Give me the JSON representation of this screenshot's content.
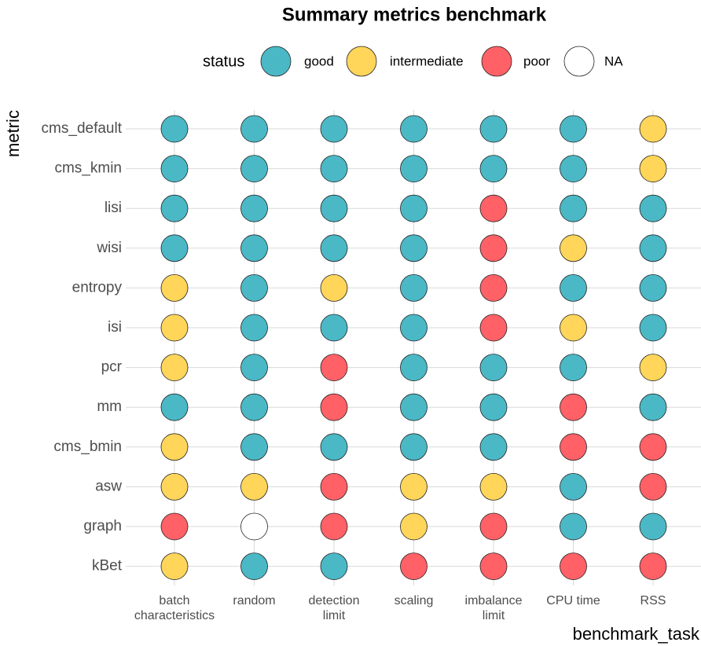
{
  "chart_data": {
    "type": "dot-matrix",
    "title": "Summary metrics benchmark",
    "x_label": "benchmark_task",
    "y_label": "metric",
    "legend_title": "status",
    "legend_position": "top",
    "grid": true,
    "statuses": [
      {
        "name": "good",
        "color": "#4bb8c6"
      },
      {
        "name": "intermediate",
        "color": "#ffd55a"
      },
      {
        "name": "poor",
        "color": "#ff6166"
      },
      {
        "name": "NA",
        "color": "#ffffff"
      }
    ],
    "categories": [
      "batch\ncharacteristics",
      "random",
      "detection\nlimit",
      "scaling",
      "imbalance\nlimit",
      "CPU time",
      "RSS"
    ],
    "rows": [
      "cms_default",
      "cms_kmin",
      "lisi",
      "wisi",
      "entropy",
      "isi",
      "pcr",
      "mm",
      "cms_bmin",
      "asw",
      "graph",
      "kBet"
    ],
    "cells": [
      [
        "good",
        "good",
        "good",
        "good",
        "good",
        "good",
        "intermediate"
      ],
      [
        "good",
        "good",
        "good",
        "good",
        "good",
        "good",
        "intermediate"
      ],
      [
        "good",
        "good",
        "good",
        "good",
        "poor",
        "good",
        "good"
      ],
      [
        "good",
        "good",
        "good",
        "good",
        "poor",
        "intermediate",
        "good"
      ],
      [
        "intermediate",
        "good",
        "intermediate",
        "good",
        "poor",
        "good",
        "good"
      ],
      [
        "intermediate",
        "good",
        "good",
        "good",
        "poor",
        "intermediate",
        "good"
      ],
      [
        "intermediate",
        "good",
        "poor",
        "good",
        "good",
        "good",
        "intermediate"
      ],
      [
        "good",
        "good",
        "poor",
        "good",
        "good",
        "poor",
        "good"
      ],
      [
        "intermediate",
        "good",
        "good",
        "good",
        "good",
        "poor",
        "poor"
      ],
      [
        "intermediate",
        "intermediate",
        "poor",
        "intermediate",
        "intermediate",
        "good",
        "poor"
      ],
      [
        "poor",
        "NA",
        "poor",
        "intermediate",
        "poor",
        "good",
        "good"
      ],
      [
        "intermediate",
        "good",
        "good",
        "poor",
        "poor",
        "poor",
        "poor"
      ]
    ]
  }
}
